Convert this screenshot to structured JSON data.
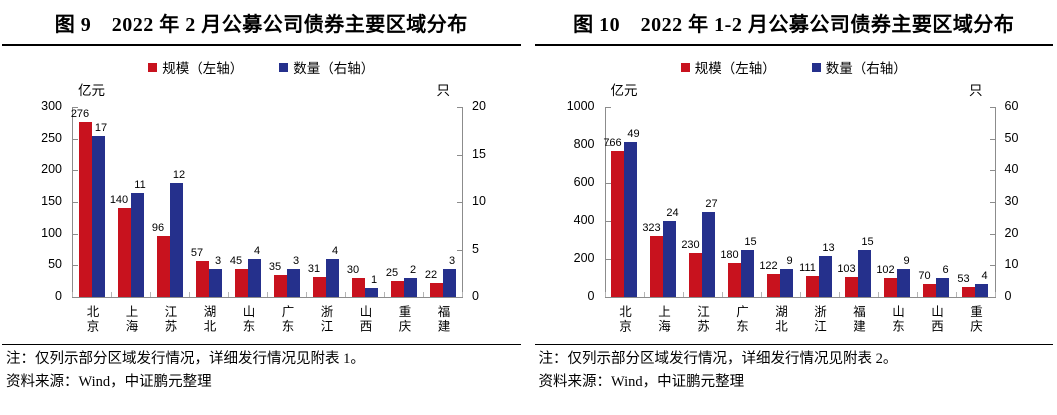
{
  "colors": {
    "scale_red": "#C8121E",
    "count_blue": "#25308C",
    "axis_gray": "#8c8c8c",
    "rule_black": "#000000"
  },
  "chart_data": [
    {
      "type": "bar",
      "title": "图 9　2022 年 2 月公募公司债券主要区域分布",
      "legend_position": "top",
      "grid": false,
      "categories": [
        "北京",
        "上海",
        "江苏",
        "湖北",
        "山东",
        "广东",
        "浙江",
        "山西",
        "重庆",
        "福建"
      ],
      "series": [
        {
          "name": "规模（左轴）",
          "axis": "left",
          "color": "#C8121E",
          "values": [
            276,
            140,
            96,
            57,
            45,
            35,
            31,
            30,
            25,
            22
          ]
        },
        {
          "name": "数量（右轴）",
          "axis": "right",
          "color": "#25308C",
          "values": [
            17,
            11,
            12,
            3,
            4,
            3,
            4,
            1,
            2,
            3
          ]
        }
      ],
      "left_axis": {
        "unit": "亿元",
        "ticks": [
          0,
          50,
          100,
          150,
          200,
          250,
          300
        ],
        "range": [
          0,
          300
        ]
      },
      "right_axis": {
        "unit": "只",
        "ticks": [
          0,
          5,
          10,
          15,
          20
        ],
        "range": [
          0,
          20
        ]
      },
      "note": "注：仅列示部分区域发行情况，详细发行情况见附表 1。",
      "source": "资料来源：Wind，中证鹏元整理"
    },
    {
      "type": "bar",
      "title": "图 10　2022 年 1-2 月公募公司债券主要区域分布",
      "legend_position": "top",
      "grid": false,
      "categories": [
        "北京",
        "上海",
        "江苏",
        "广东",
        "湖北",
        "浙江",
        "福建",
        "山东",
        "山西",
        "重庆"
      ],
      "series": [
        {
          "name": "规模（左轴）",
          "axis": "left",
          "color": "#C8121E",
          "values": [
            766,
            323,
            230,
            180,
            122,
            111,
            103,
            102,
            70,
            53
          ]
        },
        {
          "name": "数量（右轴）",
          "axis": "right",
          "color": "#25308C",
          "values": [
            49,
            24,
            27,
            15,
            9,
            13,
            15,
            9,
            6,
            4
          ]
        }
      ],
      "left_axis": {
        "unit": "亿元",
        "ticks": [
          0,
          200,
          400,
          600,
          800,
          1000
        ],
        "range": [
          0,
          1000
        ]
      },
      "right_axis": {
        "unit": "只",
        "ticks": [
          0,
          10,
          20,
          30,
          40,
          50,
          60
        ],
        "range": [
          0,
          60
        ]
      },
      "note": "注：仅列示部分区域发行情况，详细发行情况见附表 2。",
      "source": "资料来源：Wind，中证鹏元整理"
    }
  ]
}
